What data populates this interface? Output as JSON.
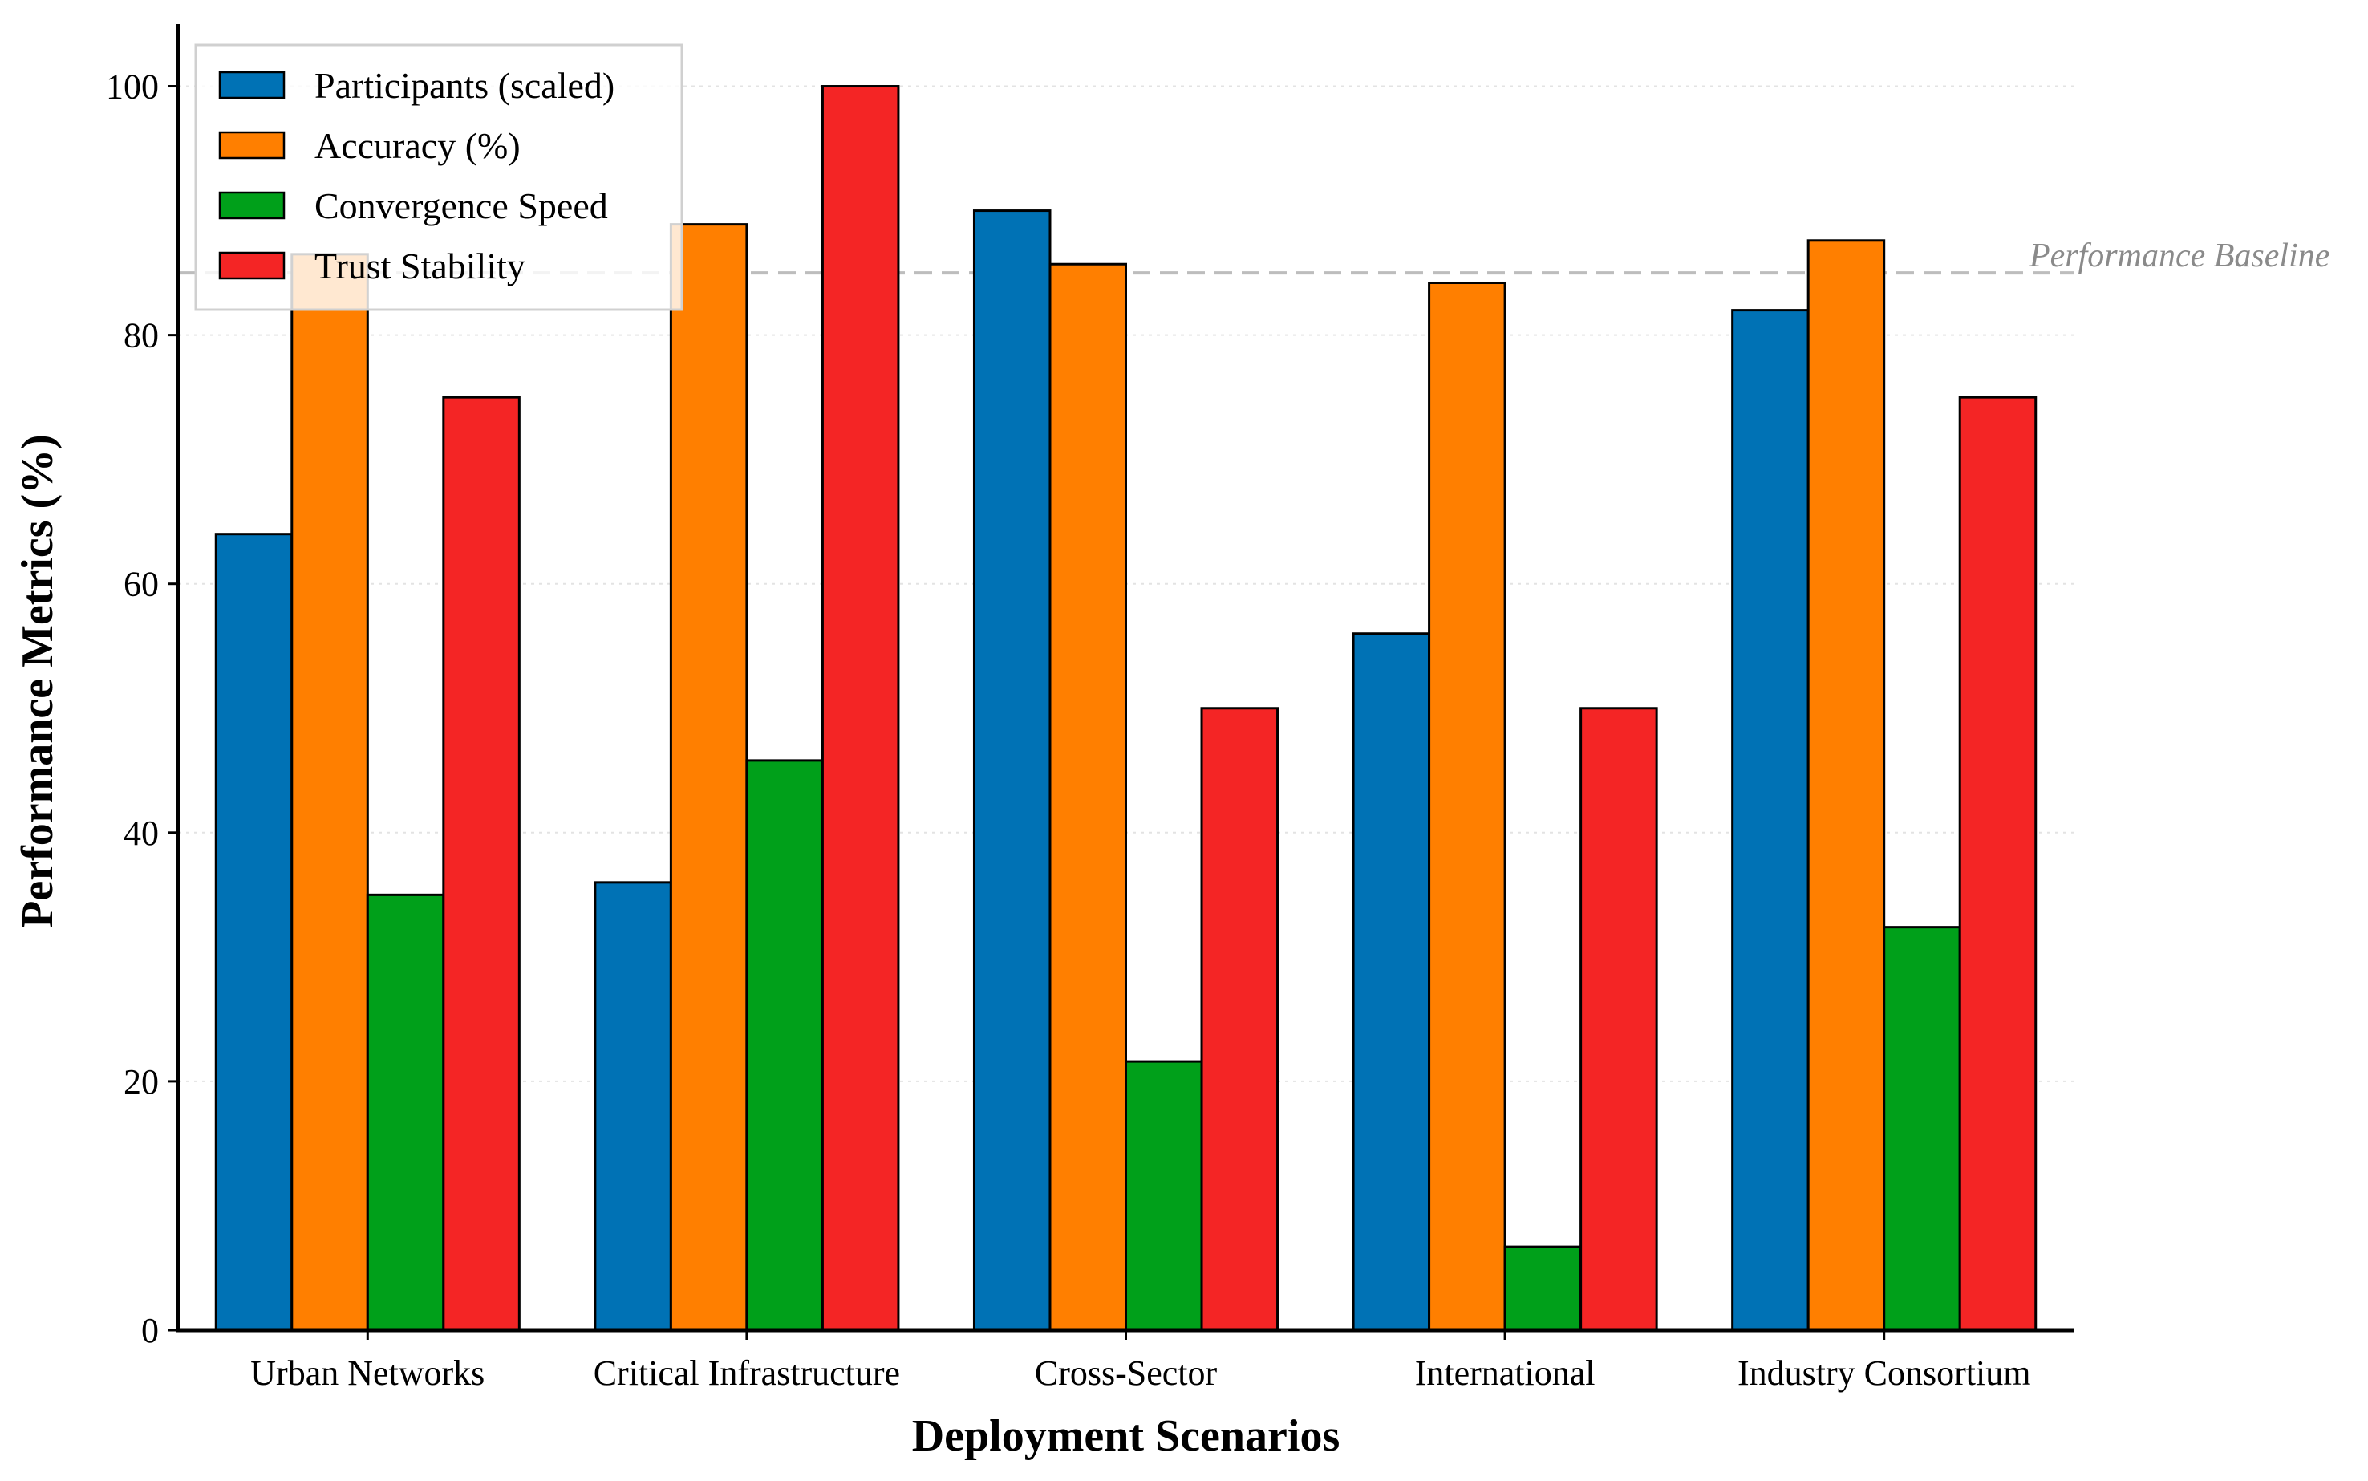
{
  "chart_data": {
    "type": "bar",
    "title": "",
    "xlabel": "Deployment Scenarios",
    "ylabel": "Performance Metrics (%)",
    "ylim": [
      0,
      105
    ],
    "yticks": [
      0,
      20,
      40,
      60,
      80,
      100
    ],
    "grid": true,
    "legend_position": "top-left",
    "categories": [
      "Urban Networks",
      "Critical Infrastructure",
      "Cross-Sector",
      "International",
      "Industry Consortium"
    ],
    "series": [
      {
        "name": "Participants (scaled)",
        "color": "#0072b5",
        "values": [
          64,
          36,
          90,
          56,
          82
        ]
      },
      {
        "name": "Accuracy (%)",
        "color": "#ff7f00",
        "values": [
          86.5,
          88.9,
          85.7,
          84.2,
          87.6
        ]
      },
      {
        "name": "Convergence Speed",
        "color": "#00a01a",
        "values": [
          35,
          45.8,
          21.6,
          6.7,
          32.4
        ]
      },
      {
        "name": "Trust Stability",
        "color": "#f42525",
        "values": [
          75,
          100,
          50,
          50,
          75
        ]
      }
    ],
    "reference_line": {
      "label": "Performance Baseline",
      "value": 85,
      "color": "#bdbdbd"
    }
  }
}
